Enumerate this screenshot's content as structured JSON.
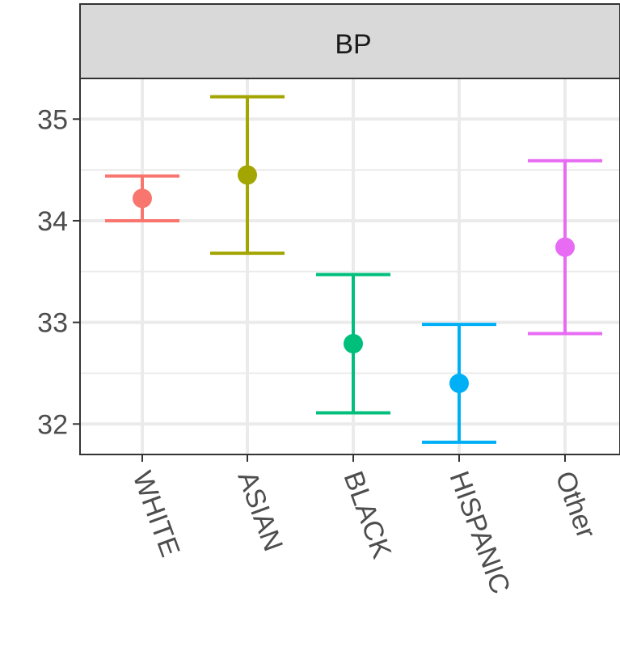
{
  "chart_data": {
    "type": "errorbar",
    "facet_label": "BP",
    "categories": [
      "WHITE",
      "ASIAN",
      "BLACK",
      "HISPANIC",
      "Other"
    ],
    "points": [
      {
        "category": "WHITE",
        "estimate": 34.22,
        "lower": 34.0,
        "upper": 34.44,
        "color": "#F8766D"
      },
      {
        "category": "ASIAN",
        "estimate": 34.45,
        "lower": 33.68,
        "upper": 35.22,
        "color": "#A3A500"
      },
      {
        "category": "BLACK",
        "estimate": 32.79,
        "lower": 32.11,
        "upper": 33.47,
        "color": "#00BF7D"
      },
      {
        "category": "HISPANIC",
        "estimate": 32.4,
        "lower": 31.82,
        "upper": 32.98,
        "color": "#00B0F6"
      },
      {
        "category": "Other",
        "estimate": 33.74,
        "lower": 32.89,
        "upper": 34.59,
        "color": "#E76BF3"
      }
    ],
    "y_ticks": [
      32,
      33,
      34,
      35
    ],
    "ylim": [
      31.7,
      35.4
    ],
    "grid": true,
    "legend": "none",
    "colors": {
      "strip_background": "#d9d9d9",
      "panel_border": "#333333",
      "grid": "#ebebeb",
      "text": "#4d4d4d"
    }
  }
}
